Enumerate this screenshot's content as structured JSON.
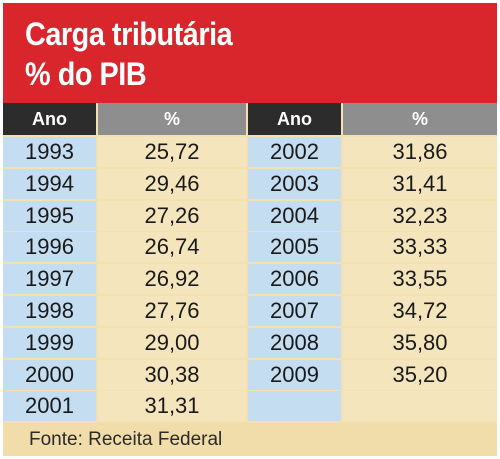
{
  "header": {
    "title_line1": "Carga tributária",
    "title_line2": "% do PIB"
  },
  "column_headers": {
    "year": "Ano",
    "percent": "%"
  },
  "source": "Fonte: Receita Federal",
  "colors": {
    "header_red": "#d8262c",
    "year_cell_blue": "#c4ddf0",
    "value_cell_beige": "#f5e5bd",
    "col_header_dark": "#2c2c2c",
    "col_header_gray": "#8e8e8e"
  },
  "chart_data": {
    "type": "table",
    "title": "Carga tributária % do PIB",
    "columns": [
      "Ano",
      "%"
    ],
    "left_block": [
      {
        "year": "1993",
        "value": "25,72"
      },
      {
        "year": "1994",
        "value": "29,46"
      },
      {
        "year": "1995",
        "value": "27,26"
      },
      {
        "year": "1996",
        "value": "26,74"
      },
      {
        "year": "1997",
        "value": "26,92"
      },
      {
        "year": "1998",
        "value": "27,76"
      },
      {
        "year": "1999",
        "value": "29,00"
      },
      {
        "year": "2000",
        "value": "30,38"
      },
      {
        "year": "2001",
        "value": "31,31"
      }
    ],
    "right_block": [
      {
        "year": "2002",
        "value": "31,86"
      },
      {
        "year": "2003",
        "value": "31,41"
      },
      {
        "year": "2004",
        "value": "32,23"
      },
      {
        "year": "2005",
        "value": "33,33"
      },
      {
        "year": "2006",
        "value": "33,55"
      },
      {
        "year": "2007",
        "value": "34,72"
      },
      {
        "year": "2008",
        "value": "35,80"
      },
      {
        "year": "2009",
        "value": "35,20"
      }
    ]
  }
}
